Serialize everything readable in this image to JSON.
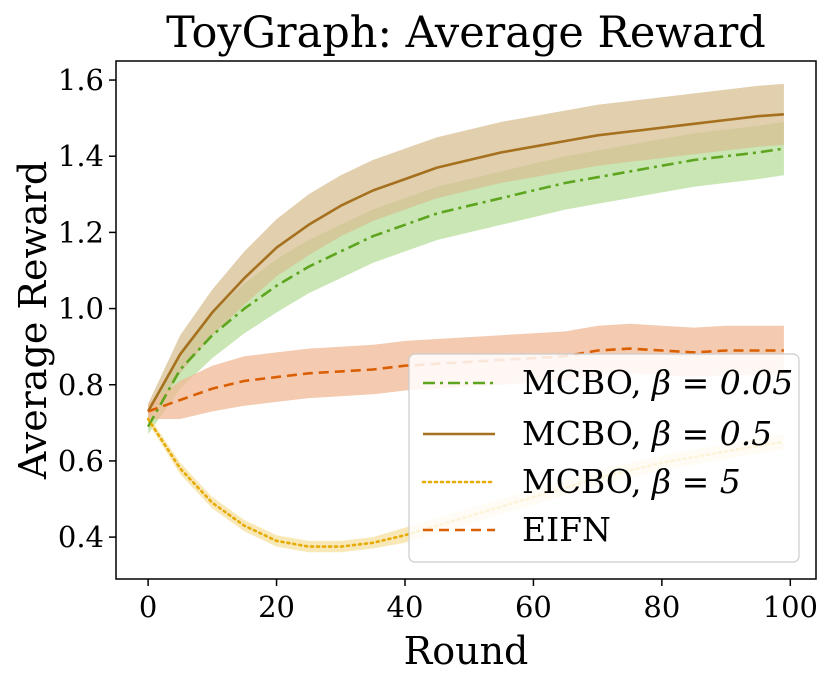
{
  "chart_data": {
    "type": "line",
    "title": "ToyGraph: Average Reward",
    "xlabel": "Round",
    "ylabel": "Average Reward",
    "xlim": [
      -5,
      104
    ],
    "ylim": [
      0.29,
      1.65
    ],
    "xticks": [
      0,
      20,
      40,
      60,
      80,
      100
    ],
    "yticks": [
      0.4,
      0.6,
      0.8,
      1.0,
      1.2,
      1.4,
      1.6
    ],
    "xtick_labels": [
      "0",
      "20",
      "40",
      "60",
      "80",
      "100"
    ],
    "ytick_labels": [
      "0.4",
      "0.6",
      "0.8",
      "1.0",
      "1.2",
      "1.4",
      "1.6"
    ],
    "legend_position": "lower-right",
    "x": [
      0,
      5,
      10,
      15,
      20,
      25,
      30,
      35,
      40,
      45,
      50,
      55,
      60,
      65,
      70,
      75,
      80,
      85,
      90,
      95,
      99
    ],
    "series": [
      {
        "name": "MCBO, β = 0.05",
        "legend_prefix": "MCBO, ",
        "legend_math": "β = 0.05",
        "color": "#5ea51f",
        "band_color": "#b7dd9b",
        "style": "dashdot",
        "values": [
          0.69,
          0.84,
          0.93,
          1.0,
          1.06,
          1.11,
          1.15,
          1.19,
          1.22,
          1.25,
          1.27,
          1.29,
          1.31,
          1.33,
          1.345,
          1.36,
          1.375,
          1.39,
          1.4,
          1.41,
          1.42
        ],
        "band_width": [
          0.02,
          0.05,
          0.06,
          0.065,
          0.07,
          0.07,
          0.07,
          0.07,
          0.07,
          0.07,
          0.07,
          0.07,
          0.07,
          0.07,
          0.07,
          0.07,
          0.07,
          0.07,
          0.07,
          0.07,
          0.07
        ]
      },
      {
        "name": "MCBO, β = 0.5",
        "legend_prefix": "MCBO, ",
        "legend_math": "β = 0.5",
        "color": "#a6711f",
        "band_color": "#d7bf92",
        "style": "solid",
        "values": [
          0.73,
          0.88,
          0.99,
          1.08,
          1.16,
          1.22,
          1.27,
          1.31,
          1.34,
          1.37,
          1.39,
          1.41,
          1.425,
          1.44,
          1.455,
          1.465,
          1.475,
          1.485,
          1.495,
          1.505,
          1.51
        ],
        "band_width": [
          0.02,
          0.05,
          0.06,
          0.07,
          0.075,
          0.08,
          0.08,
          0.08,
          0.08,
          0.08,
          0.08,
          0.08,
          0.08,
          0.08,
          0.08,
          0.08,
          0.08,
          0.08,
          0.08,
          0.08,
          0.08
        ]
      },
      {
        "name": "MCBO, β = 5",
        "legend_prefix": "MCBO, ",
        "legend_math": "β = 5",
        "color": "#e6ab02",
        "band_color": "#f6e0a0",
        "style": "dotted",
        "values": [
          0.71,
          0.58,
          0.49,
          0.43,
          0.39,
          0.375,
          0.375,
          0.385,
          0.405,
          0.43,
          0.455,
          0.48,
          0.505,
          0.53,
          0.555,
          0.575,
          0.595,
          0.61,
          0.625,
          0.64,
          0.65
        ],
        "band_width": [
          0.01,
          0.015,
          0.015,
          0.015,
          0.015,
          0.015,
          0.015,
          0.015,
          0.02,
          0.02,
          0.02,
          0.02,
          0.02,
          0.02,
          0.02,
          0.02,
          0.02,
          0.02,
          0.02,
          0.02,
          0.02
        ]
      },
      {
        "name": "EIFN",
        "legend_prefix": "EIFN",
        "legend_math": "",
        "color": "#d95f02",
        "band_color": "#f0b896",
        "style": "dashed",
        "values": [
          0.73,
          0.76,
          0.79,
          0.81,
          0.82,
          0.83,
          0.835,
          0.84,
          0.85,
          0.855,
          0.86,
          0.865,
          0.87,
          0.875,
          0.89,
          0.895,
          0.89,
          0.885,
          0.89,
          0.89,
          0.89
        ],
        "band_width": [
          0.02,
          0.05,
          0.06,
          0.065,
          0.065,
          0.065,
          0.065,
          0.065,
          0.065,
          0.065,
          0.065,
          0.065,
          0.065,
          0.065,
          0.065,
          0.065,
          0.065,
          0.065,
          0.065,
          0.065,
          0.065
        ]
      }
    ]
  }
}
